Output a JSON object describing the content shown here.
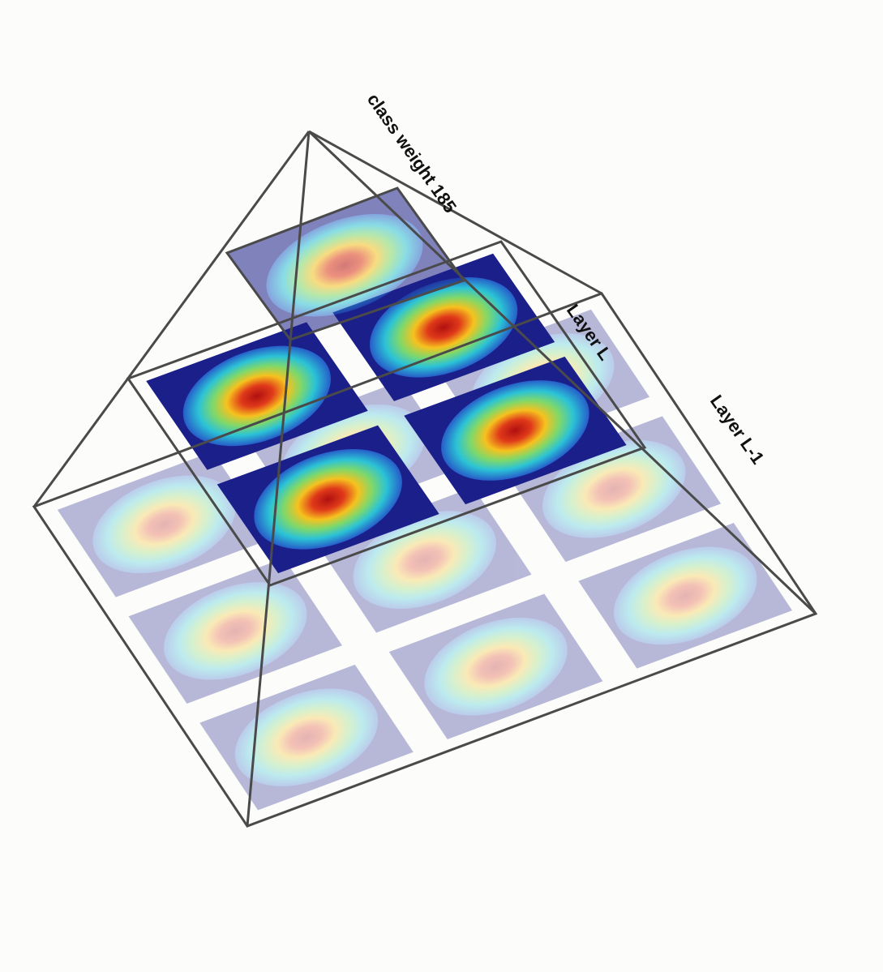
{
  "labels": {
    "top": "class weight 185",
    "layer_l": "Layer L",
    "layer_l_minus_1": "Layer L-1"
  },
  "colors": {
    "edge": "#4a4a4a",
    "background": "#fcfcfa",
    "heat_low": "#1b1f8a",
    "heat_mid": "#2bc3d6",
    "heat_high": "#d42a1c"
  },
  "layers": [
    {
      "name": "Layer L-1",
      "grid": [
        3,
        3
      ],
      "opacity": 0.3
    },
    {
      "name": "Layer L",
      "grid": [
        2,
        2
      ],
      "opacity": 1.0
    },
    {
      "name": "class weight 185",
      "grid": [
        1,
        1
      ],
      "opacity": 0.55
    }
  ]
}
